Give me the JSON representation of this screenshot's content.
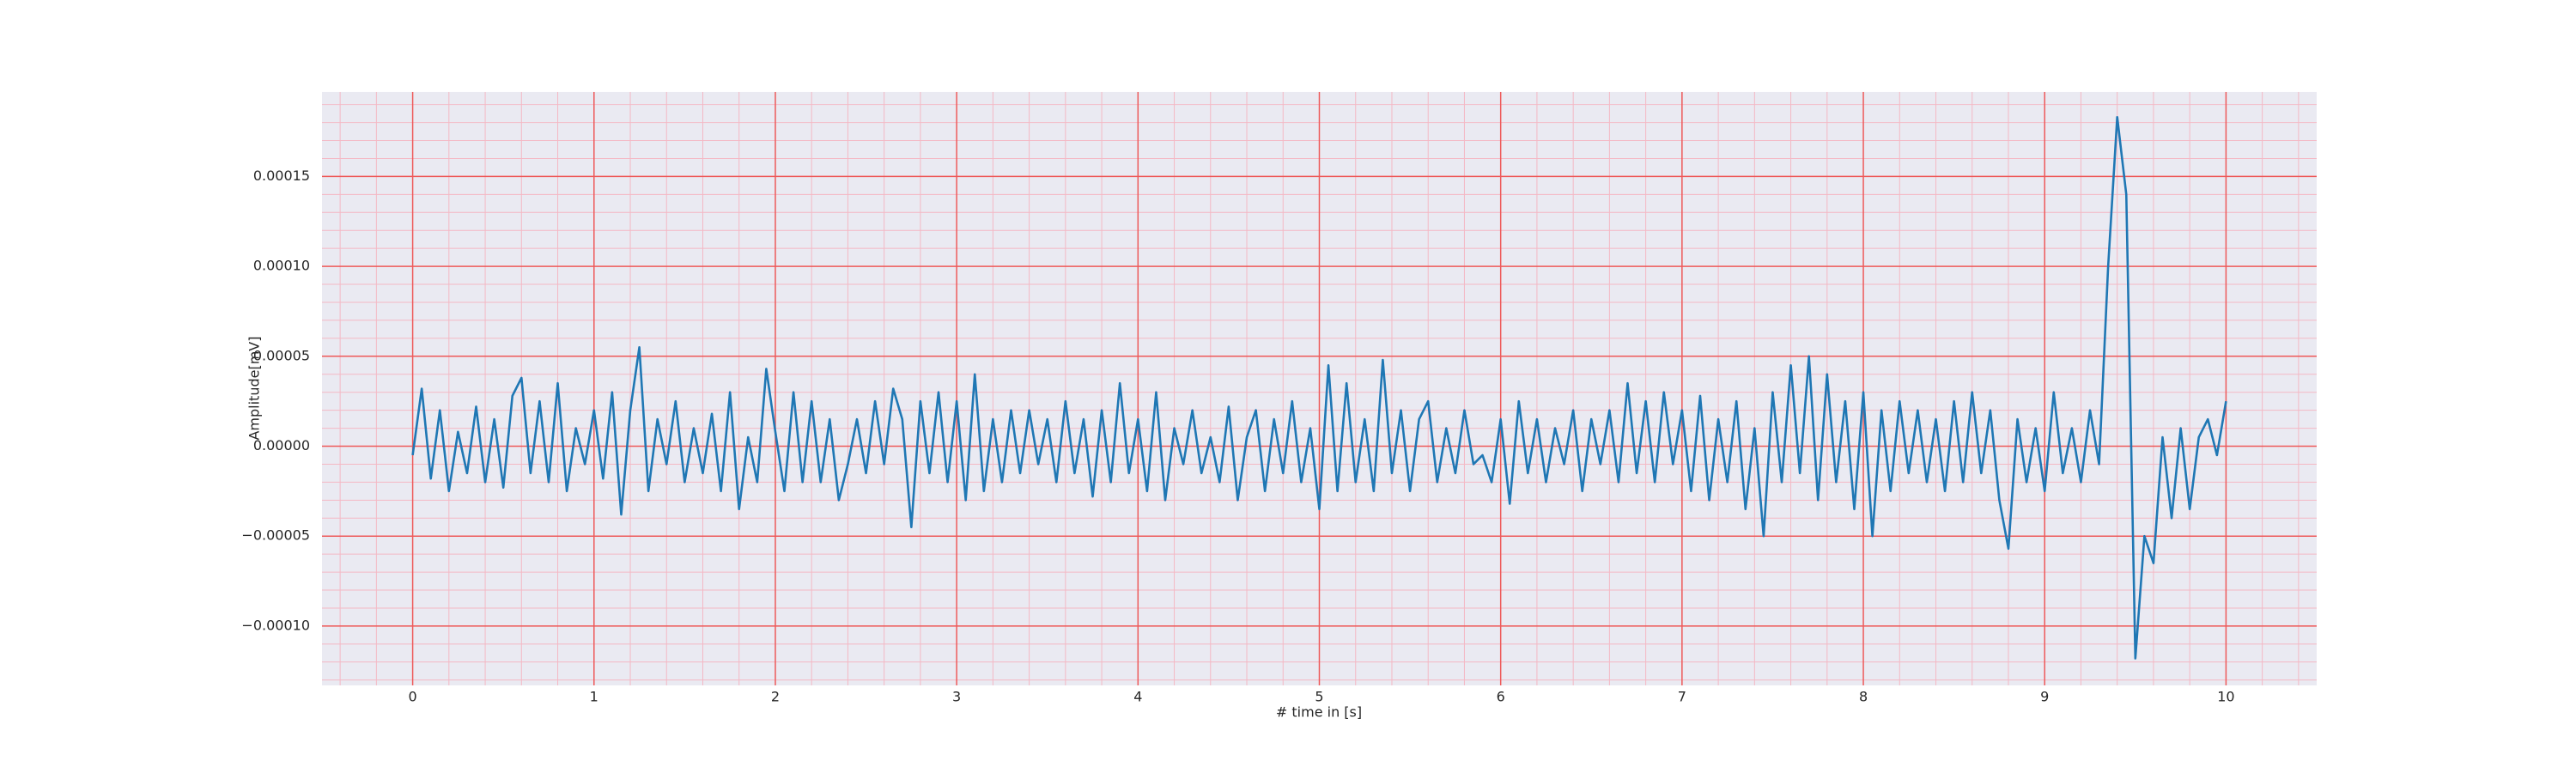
{
  "chart_data": {
    "type": "line",
    "xlabel": "# time in [s]",
    "ylabel": "Amplitude[mV]",
    "x": [
      0,
      0.05,
      0.1,
      0.15,
      0.2,
      0.25,
      0.3,
      0.35,
      0.4,
      0.45,
      0.5,
      0.55,
      0.6,
      0.65,
      0.7,
      0.75,
      0.8,
      0.85,
      0.9,
      0.95,
      1,
      1.05,
      1.1,
      1.15,
      1.2,
      1.25,
      1.3,
      1.35,
      1.4,
      1.45,
      1.5,
      1.55,
      1.6,
      1.65,
      1.7,
      1.75,
      1.8,
      1.85,
      1.9,
      1.95,
      2,
      2.05,
      2.1,
      2.15,
      2.2,
      2.25,
      2.3,
      2.35,
      2.4,
      2.45,
      2.5,
      2.55,
      2.6,
      2.65,
      2.7,
      2.75,
      2.8,
      2.85,
      2.9,
      2.95,
      3,
      3.05,
      3.1,
      3.15,
      3.2,
      3.25,
      3.3,
      3.35,
      3.4,
      3.45,
      3.5,
      3.55,
      3.6,
      3.65,
      3.7,
      3.75,
      3.8,
      3.85,
      3.9,
      3.95,
      4,
      4.05,
      4.1,
      4.15,
      4.2,
      4.25,
      4.3,
      4.35,
      4.4,
      4.45,
      4.5,
      4.55,
      4.6,
      4.65,
      4.7,
      4.75,
      4.8,
      4.85,
      4.9,
      4.95,
      5,
      5.05,
      5.1,
      5.15,
      5.2,
      5.25,
      5.3,
      5.35,
      5.4,
      5.45,
      5.5,
      5.55,
      5.6,
      5.65,
      5.7,
      5.75,
      5.8,
      5.85,
      5.9,
      5.95,
      6,
      6.05,
      6.1,
      6.15,
      6.2,
      6.25,
      6.3,
      6.35,
      6.4,
      6.45,
      6.5,
      6.55,
      6.6,
      6.65,
      6.7,
      6.75,
      6.8,
      6.85,
      6.9,
      6.95,
      7,
      7.05,
      7.1,
      7.15,
      7.2,
      7.25,
      7.3,
      7.35,
      7.4,
      7.45,
      7.5,
      7.55,
      7.6,
      7.65,
      7.7,
      7.75,
      7.8,
      7.85,
      7.9,
      7.95,
      8,
      8.05,
      8.1,
      8.15,
      8.2,
      8.25,
      8.3,
      8.35,
      8.4,
      8.45,
      8.5,
      8.55,
      8.6,
      8.65,
      8.7,
      8.75,
      8.8,
      8.85,
      8.9,
      8.95,
      9,
      9.05,
      9.1,
      9.15,
      9.2,
      9.25,
      9.3,
      9.35,
      9.4,
      9.45,
      9.5,
      9.55,
      9.6,
      9.65,
      9.7,
      9.75,
      9.8,
      9.85,
      9.9,
      9.95,
      10
    ],
    "values": [
      -5e-06,
      3.2e-05,
      -1.8e-05,
      2e-05,
      -2.5e-05,
      8e-06,
      -1.5e-05,
      2.2e-05,
      -2e-05,
      1.5e-05,
      -2.3e-05,
      2.8e-05,
      3.8e-05,
      -1.5e-05,
      2.5e-05,
      -2e-05,
      3.5e-05,
      -2.5e-05,
      1e-05,
      -1e-05,
      2e-05,
      -1.8e-05,
      3e-05,
      -3.8e-05,
      2e-05,
      5.5e-05,
      -2.5e-05,
      1.5e-05,
      -1e-05,
      2.5e-05,
      -2e-05,
      1e-05,
      -1.5e-05,
      1.8e-05,
      -2.5e-05,
      3e-05,
      -3.5e-05,
      5e-06,
      -2e-05,
      4.3e-05,
      8e-06,
      -2.5e-05,
      3e-05,
      -2e-05,
      2.5e-05,
      -2e-05,
      1.5e-05,
      -3e-05,
      -1e-05,
      1.5e-05,
      -1.5e-05,
      2.5e-05,
      -1e-05,
      3.2e-05,
      1.5e-05,
      -4.5e-05,
      2.5e-05,
      -1.5e-05,
      3e-05,
      -2e-05,
      2.5e-05,
      -3e-05,
      4e-05,
      -2.5e-05,
      1.5e-05,
      -2e-05,
      2e-05,
      -1.5e-05,
      2e-05,
      -1e-05,
      1.5e-05,
      -2e-05,
      2.5e-05,
      -1.5e-05,
      1.5e-05,
      -2.8e-05,
      2e-05,
      -2e-05,
      3.5e-05,
      -1.5e-05,
      1.5e-05,
      -2.5e-05,
      3e-05,
      -3e-05,
      1e-05,
      -1e-05,
      2e-05,
      -1.5e-05,
      5e-06,
      -2e-05,
      2.2e-05,
      -3e-05,
      5e-06,
      2e-05,
      -2.5e-05,
      1.5e-05,
      -1.5e-05,
      2.5e-05,
      -2e-05,
      1e-05,
      -3.5e-05,
      4.5e-05,
      -2.5e-05,
      3.5e-05,
      -2e-05,
      1.5e-05,
      -2.5e-05,
      4.8e-05,
      -1.5e-05,
      2e-05,
      -2.5e-05,
      1.5e-05,
      2.5e-05,
      -2e-05,
      1e-05,
      -1.5e-05,
      2e-05,
      -1e-05,
      -5e-06,
      -2e-05,
      1.5e-05,
      -3.2e-05,
      2.5e-05,
      -1.5e-05,
      1.5e-05,
      -2e-05,
      1e-05,
      -1e-05,
      2e-05,
      -2.5e-05,
      1.5e-05,
      -1e-05,
      2e-05,
      -2e-05,
      3.5e-05,
      -1.5e-05,
      2.5e-05,
      -2e-05,
      3e-05,
      -1e-05,
      2e-05,
      -2.5e-05,
      2.8e-05,
      -3e-05,
      1.5e-05,
      -2e-05,
      2.5e-05,
      -3.5e-05,
      1e-05,
      -5e-05,
      3e-05,
      -2e-05,
      4.5e-05,
      -1.5e-05,
      5e-05,
      -3e-05,
      4e-05,
      -2e-05,
      2.5e-05,
      -3.5e-05,
      3e-05,
      -5e-05,
      2e-05,
      -2.5e-05,
      2.5e-05,
      -1.5e-05,
      2e-05,
      -2e-05,
      1.5e-05,
      -2.5e-05,
      2.5e-05,
      -2e-05,
      3e-05,
      -1.5e-05,
      2e-05,
      -3e-05,
      -5.7e-05,
      1.5e-05,
      -2e-05,
      1e-05,
      -2.5e-05,
      3e-05,
      -1.5e-05,
      1e-05,
      -2e-05,
      2e-05,
      -1e-05,
      0.0001,
      0.000183,
      0.00014,
      -0.000118,
      -5e-05,
      -6.5e-05,
      5e-06,
      -4e-05,
      1e-05,
      -3.5e-05,
      5e-06,
      1.5e-05,
      -5e-06,
      2.5e-05
    ],
    "color": "#1f77b4",
    "xlim": [
      -0.5,
      10.5
    ],
    "ylim": [
      -0.000133,
      0.000197
    ],
    "xticks": [
      0,
      1,
      2,
      3,
      4,
      5,
      6,
      7,
      8,
      9,
      10
    ],
    "yticks": [
      {
        "value": -0.0001,
        "label": "−0.00010"
      },
      {
        "value": -5e-05,
        "label": "−0.00005"
      },
      {
        "value": 0,
        "label": "0.00000"
      },
      {
        "value": 5e-05,
        "label": "0.00005"
      },
      {
        "value": 0.0001,
        "label": "0.00010"
      },
      {
        "value": 0.00015,
        "label": "0.00015"
      }
    ],
    "minor_xticks": [
      -0.4,
      -0.2,
      0.2,
      0.4,
      0.6,
      0.8,
      1.2,
      1.4,
      1.6,
      1.8,
      2.2,
      2.4,
      2.6,
      2.8,
      3.2,
      3.4,
      3.6,
      3.8,
      4.2,
      4.4,
      4.6,
      4.8,
      5.2,
      5.4,
      5.6,
      5.8,
      6.2,
      6.4,
      6.6,
      6.8,
      7.2,
      7.4,
      7.6,
      7.8,
      8.2,
      8.4,
      8.6,
      8.8,
      9.2,
      9.4,
      9.6,
      9.8,
      10.2,
      10.4
    ],
    "minor_yticks": [
      -0.00013,
      -0.00012,
      -0.00011,
      -9e-05,
      -8e-05,
      -7e-05,
      -6e-05,
      -4e-05,
      -3e-05,
      -2e-05,
      -1e-05,
      1e-05,
      2e-05,
      3e-05,
      4e-05,
      6e-05,
      7e-05,
      8e-05,
      9e-05,
      0.00011,
      0.00012,
      0.00013,
      0.00014,
      0.00016,
      0.00017,
      0.00018,
      0.00019
    ],
    "grid": true
  }
}
